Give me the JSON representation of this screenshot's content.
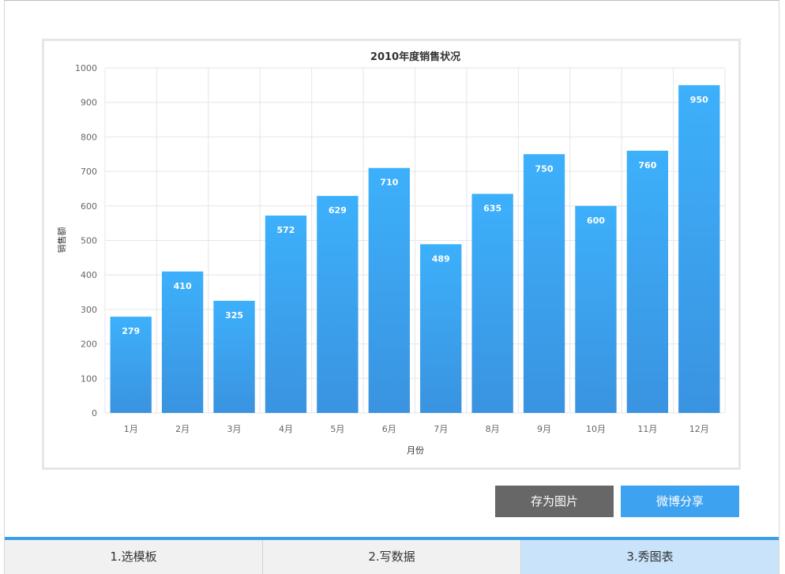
{
  "chart_data": {
    "type": "bar",
    "title": "2010年度销售状况",
    "xlabel": "月份",
    "ylabel": "销售额",
    "categories": [
      "1月",
      "2月",
      "3月",
      "4月",
      "5月",
      "6月",
      "7月",
      "8月",
      "9月",
      "10月",
      "11月",
      "12月"
    ],
    "values": [
      279,
      410,
      325,
      572,
      629,
      710,
      489,
      635,
      750,
      600,
      760,
      950
    ],
    "ylim": [
      0,
      1000
    ],
    "yticks": [
      0,
      100,
      200,
      300,
      400,
      500,
      600,
      700,
      800,
      900,
      1000
    ],
    "grid": true,
    "data_labels": true,
    "colors": {
      "bar_top": "#3db0fb",
      "bar_bottom": "#3a93e0",
      "grid": "#e6e6e6"
    }
  },
  "actions": {
    "save_label": "存为图片",
    "share_label": "微博分享"
  },
  "steps": [
    {
      "label": "1.选模板",
      "active": false
    },
    {
      "label": "2.写数据",
      "active": false
    },
    {
      "label": "3.秀图表",
      "active": true
    }
  ]
}
